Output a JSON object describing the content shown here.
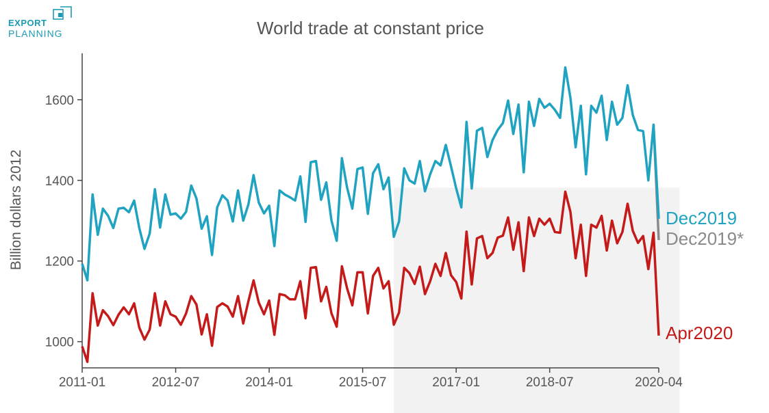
{
  "brand": {
    "line1": "EXPORT",
    "line2": "PLANNING",
    "color": "#1a9bb5"
  },
  "chart_data": {
    "type": "line",
    "title": "World trade at constant price",
    "xlabel": "",
    "ylabel": "Billion dollars 2012",
    "ylim": [
      935,
      1715
    ],
    "yticks": [
      1000,
      1200,
      1400,
      1600
    ],
    "x_start": "2011-01",
    "x_end": "2020-04",
    "xticks": [
      "2011-01",
      "2012-07",
      "2014-01",
      "2015-07",
      "2017-01",
      "2018-07",
      "2020-04"
    ],
    "shaded_period": {
      "from": "2016-01",
      "to": "2020-08",
      "ymax": 1382
    },
    "series": [
      {
        "name": "Dec2019",
        "color": "#1fa3c1",
        "start": "2011-01",
        "values": [
          1193,
          1152,
          1365,
          1265,
          1330,
          1312,
          1282,
          1330,
          1332,
          1321,
          1350,
          1282,
          1230,
          1268,
          1378,
          1283,
          1365,
          1315,
          1318,
          1305,
          1322,
          1387,
          1355,
          1280,
          1311,
          1215,
          1333,
          1363,
          1350,
          1298,
          1375,
          1300,
          1340,
          1413,
          1345,
          1318,
          1337,
          1237,
          1375,
          1365,
          1358,
          1350,
          1410,
          1297,
          1445,
          1448,
          1352,
          1395,
          1300,
          1250,
          1455,
          1382,
          1330,
          1428,
          1432,
          1317,
          1418,
          1440,
          1378,
          1407,
          1260,
          1298,
          1430,
          1400,
          1392,
          1448,
          1373,
          1415,
          1448,
          1437,
          1488,
          1435,
          1380,
          1333,
          1545,
          1380,
          1523,
          1530,
          1458,
          1500,
          1525,
          1542,
          1598,
          1515,
          1588,
          1420,
          1595,
          1535,
          1602,
          1580,
          1590,
          1575,
          1555,
          1680,
          1605,
          1482,
          1585,
          1415,
          1585,
          1568,
          1610,
          1500,
          1595,
          1538,
          1555,
          1636,
          1562,
          1525,
          1522,
          1400,
          1538,
          1305
        ]
      },
      {
        "name": "Dec2019*",
        "color": "#8a8a8a",
        "start": "2020-04",
        "values": [
          1252
        ]
      },
      {
        "name": "Apr2020",
        "color": "#c41a1a",
        "start": "2011-01",
        "values": [
          988,
          950,
          1120,
          1040,
          1078,
          1063,
          1041,
          1067,
          1085,
          1068,
          1095,
          1035,
          1005,
          1030,
          1120,
          1040,
          1100,
          1068,
          1062,
          1042,
          1070,
          1113,
          1092,
          1018,
          1068,
          990,
          1086,
          1095,
          1087,
          1062,
          1113,
          1045,
          1100,
          1152,
          1097,
          1068,
          1102,
          1017,
          1118,
          1115,
          1105,
          1105,
          1150,
          1058,
          1183,
          1185,
          1100,
          1136,
          1070,
          1037,
          1187,
          1132,
          1090,
          1172,
          1172,
          1070,
          1163,
          1183,
          1132,
          1150,
          1042,
          1072,
          1183,
          1170,
          1143,
          1186,
          1118,
          1150,
          1193,
          1163,
          1220,
          1165,
          1148,
          1107,
          1273,
          1142,
          1256,
          1262,
          1207,
          1220,
          1258,
          1263,
          1308,
          1228,
          1296,
          1175,
          1308,
          1262,
          1305,
          1290,
          1305,
          1272,
          1270,
          1372,
          1322,
          1207,
          1290,
          1163,
          1290,
          1283,
          1312,
          1226,
          1300,
          1244,
          1272,
          1342,
          1275,
          1245,
          1262,
          1180,
          1270,
          1015
        ]
      }
    ]
  }
}
